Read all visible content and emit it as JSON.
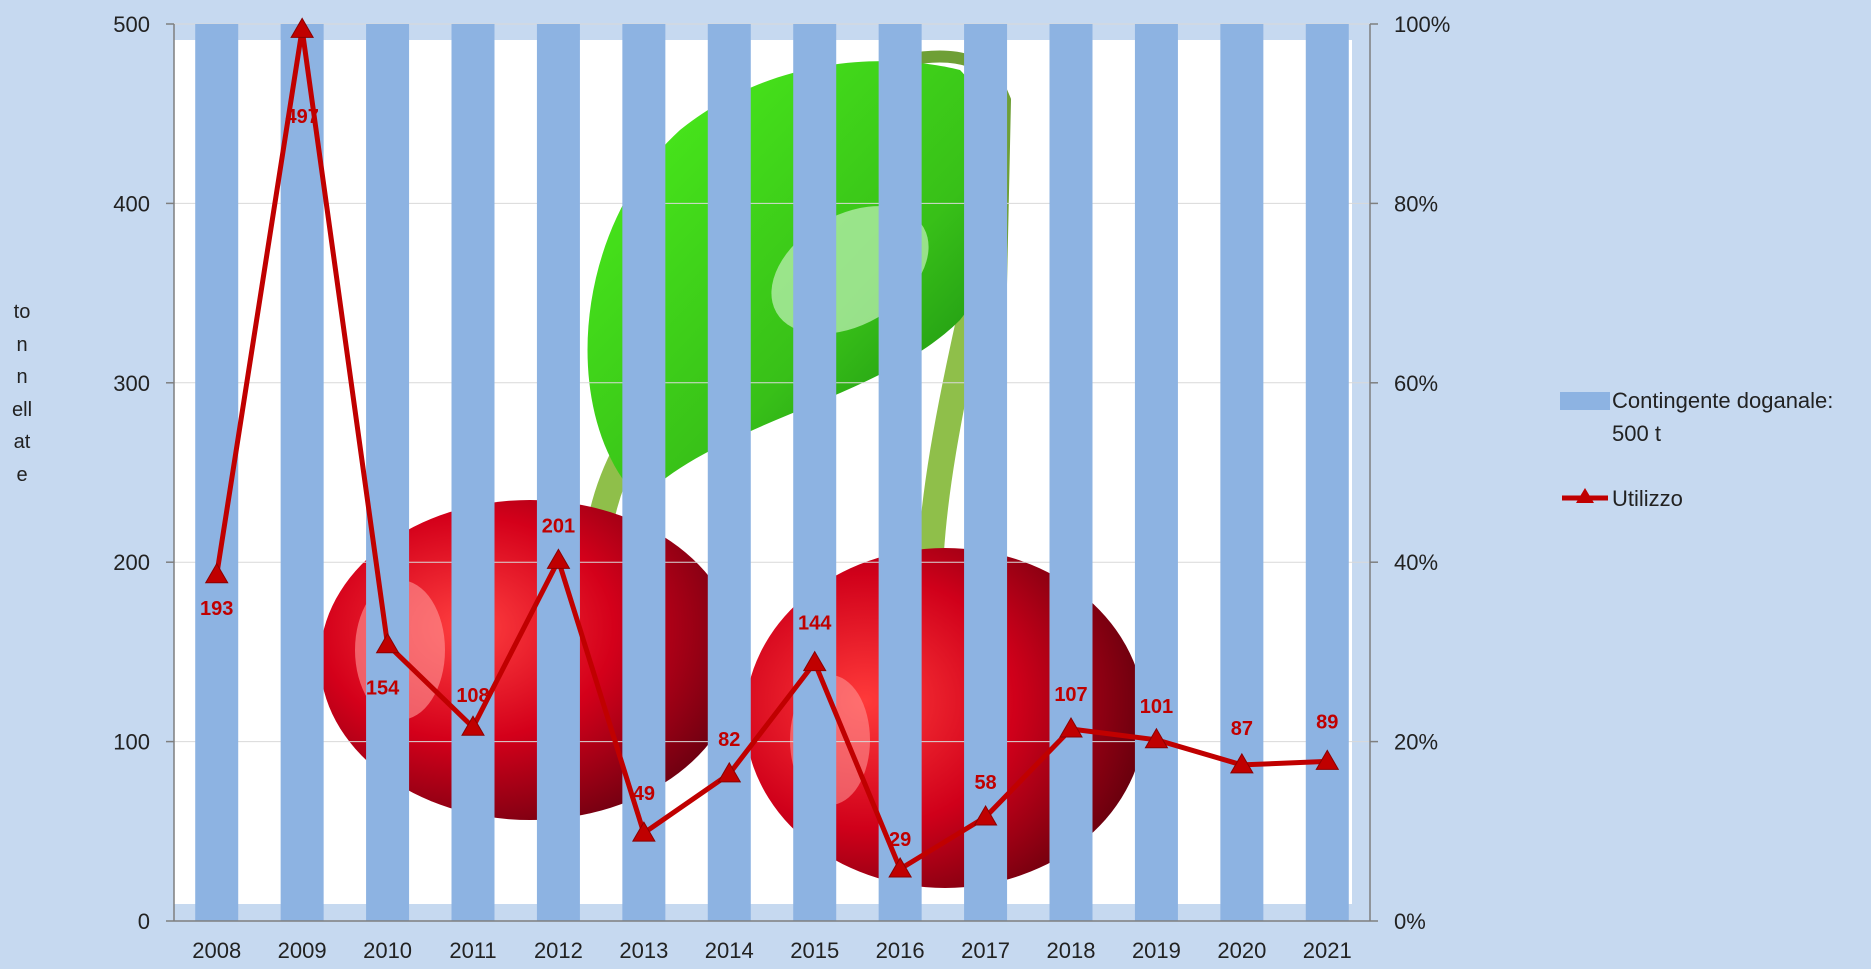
{
  "colors": {
    "bar": "#8db3e2",
    "line": "#c00000",
    "background": "#c6d9f0",
    "plot_background": "#ffffff",
    "axis": "#7f7f7f",
    "label": "#c00000"
  },
  "chart_data": {
    "type": "bar",
    "title": "",
    "ylabel": "tonnellate",
    "xlabel": "",
    "categories": [
      "2008",
      "2009",
      "2010",
      "2011",
      "2012",
      "2013",
      "2014",
      "2015",
      "2016",
      "2017",
      "2018",
      "2019",
      "2020",
      "2021"
    ],
    "ylim": [
      0,
      500
    ],
    "y_ticks": [
      "0",
      "100",
      "200",
      "300",
      "400",
      "500"
    ],
    "y2lim": [
      0,
      1
    ],
    "y2_ticks": [
      "0%",
      "20%",
      "40%",
      "60%",
      "80%",
      "100%"
    ],
    "grid": true,
    "legend_position": "right",
    "series": [
      {
        "name": "Contingente doganale: 500 t",
        "type": "bar",
        "axis": "left",
        "values": [
          500,
          500,
          500,
          500,
          500,
          500,
          500,
          500,
          500,
          500,
          500,
          500,
          500,
          500
        ]
      },
      {
        "name": "Utilizzo",
        "type": "line",
        "marker": "triangle",
        "axis": "left",
        "values": [
          193,
          497,
          154,
          108,
          201,
          49,
          82,
          144,
          29,
          58,
          107,
          101,
          87,
          89
        ],
        "data_labels": [
          "193",
          "497",
          "154",
          "108",
          "201",
          "49",
          "82",
          "144",
          "29",
          "58",
          "107",
          "101",
          "87",
          "89"
        ]
      }
    ]
  },
  "legend": {
    "bar_label": "Contingente doganale: 500 t",
    "line_label": "Utilizzo"
  }
}
